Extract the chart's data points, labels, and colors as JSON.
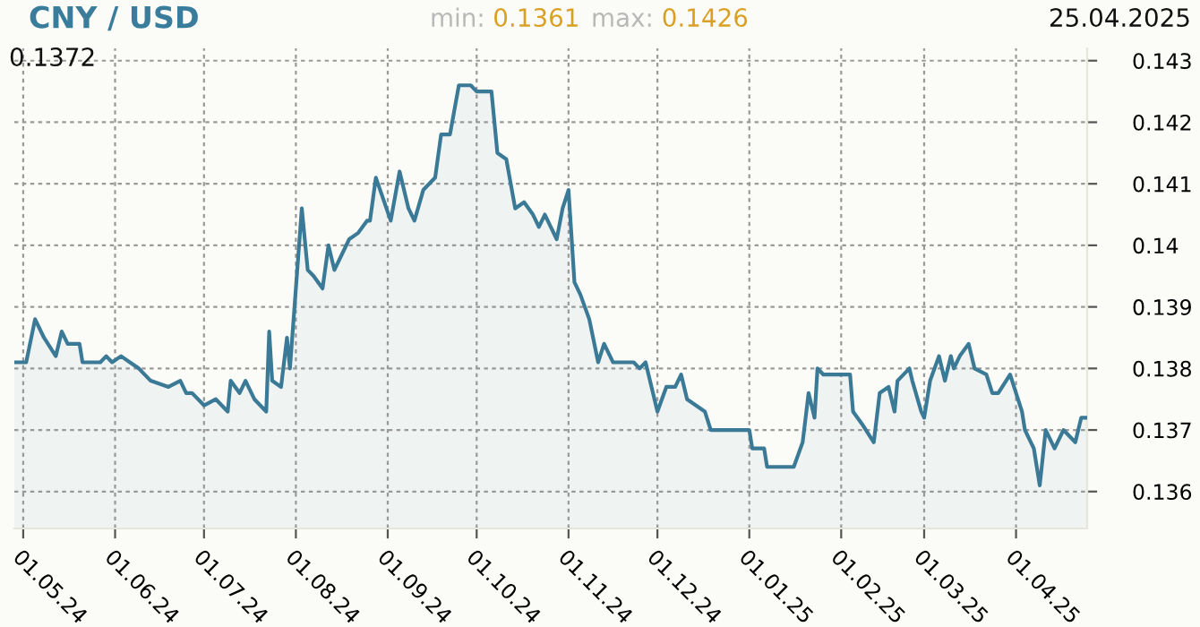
{
  "chart_data": {
    "type": "area",
    "title": "CNY / USD",
    "annotations": [
      "0.1372",
      "min: 0.1361",
      "max: 0.1426",
      "25.04.2025"
    ],
    "x": [
      "2024-04-28",
      "2024-05-02",
      "2024-05-05",
      "2024-05-08",
      "2024-05-12",
      "2024-05-14",
      "2024-05-16",
      "2024-05-20",
      "2024-05-21",
      "2024-05-27",
      "2024-05-29",
      "2024-05-31",
      "2024-06-03",
      "2024-06-06",
      "2024-06-09",
      "2024-06-13",
      "2024-06-19",
      "2024-06-23",
      "2024-06-25",
      "2024-06-27",
      "2024-07-01",
      "2024-07-05",
      "2024-07-09",
      "2024-07-10",
      "2024-07-13",
      "2024-07-15",
      "2024-07-18",
      "2024-07-22",
      "2024-07-23",
      "2024-07-24",
      "2024-07-27",
      "2024-07-29",
      "2024-07-30",
      "2024-08-01",
      "2024-08-03",
      "2024-08-05",
      "2024-08-07",
      "2024-08-10",
      "2024-08-12",
      "2024-08-14",
      "2024-08-19",
      "2024-08-22",
      "2024-08-25",
      "2024-08-26",
      "2024-08-28",
      "2024-09-02",
      "2024-09-05",
      "2024-09-08",
      "2024-09-10",
      "2024-09-13",
      "2024-09-17",
      "2024-09-19",
      "2024-09-22",
      "2024-09-25",
      "2024-09-29",
      "2024-10-01",
      "2024-10-06",
      "2024-10-08",
      "2024-10-11",
      "2024-10-14",
      "2024-10-17",
      "2024-10-20",
      "2024-10-22",
      "2024-10-24",
      "2024-10-28",
      "2024-10-30",
      "2024-11-01",
      "2024-11-03",
      "2024-11-05",
      "2024-11-08",
      "2024-11-11",
      "2024-11-13",
      "2024-11-16",
      "2024-11-21",
      "2024-11-23",
      "2024-11-25",
      "2024-11-27",
      "2024-12-01",
      "2024-12-04",
      "2024-12-07",
      "2024-12-09",
      "2024-12-11",
      "2024-12-17",
      "2024-12-19",
      "2025-01-01",
      "2025-01-02",
      "2025-01-06",
      "2025-01-07",
      "2025-01-16",
      "2025-01-19",
      "2025-01-21",
      "2025-01-23",
      "2025-01-24",
      "2025-01-26",
      "2025-02-04",
      "2025-02-05",
      "2025-02-08",
      "2025-02-12",
      "2025-02-14",
      "2025-02-17",
      "2025-02-19",
      "2025-02-20",
      "2025-02-24",
      "2025-02-25",
      "2025-02-28",
      "2025-03-01",
      "2025-03-03",
      "2025-03-06",
      "2025-03-08",
      "2025-03-10",
      "2025-03-11",
      "2025-03-13",
      "2025-03-16",
      "2025-03-18",
      "2025-03-22",
      "2025-03-24",
      "2025-03-26",
      "2025-03-30",
      "2025-04-03",
      "2025-04-04",
      "2025-04-07",
      "2025-04-09",
      "2025-04-11",
      "2025-04-14",
      "2025-04-17",
      "2025-04-21",
      "2025-04-23",
      "2025-04-25"
    ],
    "series": [
      {
        "color": "#3b7a96",
        "values": [
          0.1381,
          0.1381,
          0.1388,
          0.1385,
          0.1382,
          0.1386,
          0.1384,
          0.1384,
          0.1381,
          0.1381,
          0.1382,
          0.1381,
          0.1382,
          0.1381,
          0.138,
          0.1378,
          0.1377,
          0.1378,
          0.1376,
          0.1376,
          0.1374,
          0.1375,
          0.1373,
          0.1378,
          0.1376,
          0.1378,
          0.1375,
          0.1373,
          0.1386,
          0.1378,
          0.1377,
          0.1385,
          0.138,
          0.1393,
          0.1406,
          0.1396,
          0.1395,
          0.1393,
          0.14,
          0.1396,
          0.1401,
          0.1402,
          0.1404,
          0.1404,
          0.1411,
          0.1404,
          0.1412,
          0.1406,
          0.1404,
          0.1409,
          0.1411,
          0.1418,
          0.1418,
          0.1426,
          0.1426,
          0.1425,
          0.1425,
          0.1415,
          0.1414,
          0.1406,
          0.1407,
          0.1405,
          0.1403,
          0.1405,
          0.1401,
          0.1406,
          0.1409,
          0.1394,
          0.1392,
          0.1388,
          0.1381,
          0.1384,
          0.1381,
          0.1381,
          0.1381,
          0.138,
          0.1381,
          0.1373,
          0.1377,
          0.1377,
          0.1379,
          0.1375,
          0.1373,
          0.137,
          0.137,
          0.1367,
          0.1367,
          0.1364,
          0.1364,
          0.1368,
          0.1376,
          0.1372,
          0.138,
          0.1379,
          0.1379,
          0.1373,
          0.1371,
          0.1368,
          0.1376,
          0.1377,
          0.1373,
          0.1378,
          0.138,
          0.1378,
          0.1373,
          0.1372,
          0.1378,
          0.1382,
          0.1378,
          0.1382,
          0.138,
          0.1382,
          0.1384,
          0.138,
          0.1379,
          0.1376,
          0.1376,
          0.1379,
          0.1373,
          0.137,
          0.1367,
          0.1361,
          0.137,
          0.1367,
          0.137,
          0.1368,
          0.1372,
          0.1372
        ]
      }
    ],
    "xlim": [
      "2024-04-28",
      "2025-04-25"
    ],
    "xticks": [
      {
        "value": "2024-05-01",
        "label": "01.05.24"
      },
      {
        "value": "2024-06-01",
        "label": "01.06.24"
      },
      {
        "value": "2024-07-01",
        "label": "01.07.24"
      },
      {
        "value": "2024-08-01",
        "label": "01.08.24"
      },
      {
        "value": "2024-09-01",
        "label": "01.09.24"
      },
      {
        "value": "2024-10-01",
        "label": "01.10.24"
      },
      {
        "value": "2024-11-01",
        "label": "01.11.24"
      },
      {
        "value": "2024-12-01",
        "label": "01.12.24"
      },
      {
        "value": "2025-01-01",
        "label": "01.01.25"
      },
      {
        "value": "2025-02-01",
        "label": "01.02.25"
      },
      {
        "value": "2025-03-01",
        "label": "01.03.25"
      },
      {
        "value": "2025-04-01",
        "label": "01.04.25"
      }
    ],
    "ylim": [
      0.1354,
      0.1432
    ],
    "yticks": [
      0.136,
      0.137,
      0.138,
      0.139,
      {
        "value": 0.14,
        "label": "0.14"
      },
      0.141,
      0.142,
      0.143
    ],
    "grid": true,
    "line_style": "solid"
  }
}
